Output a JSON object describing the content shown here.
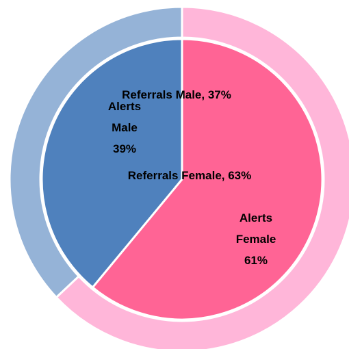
{
  "chart_data": {
    "type": "pie",
    "series": [
      {
        "values": [
          61,
          39
        ],
        "colors": [
          "#ff6495",
          "#4f81bd"
        ],
        "value_labels": [
          "Alerts\nFemale\n61%",
          "Alerts\nMale\n39%"
        ]
      },
      {
        "values": [
          63,
          37
        ],
        "colors": [
          "#ffb6d9",
          "#95b3d7"
        ],
        "value_labels": [
          "Referrals Female, 63%",
          "Referrals Male, 37%"
        ]
      }
    ]
  }
}
